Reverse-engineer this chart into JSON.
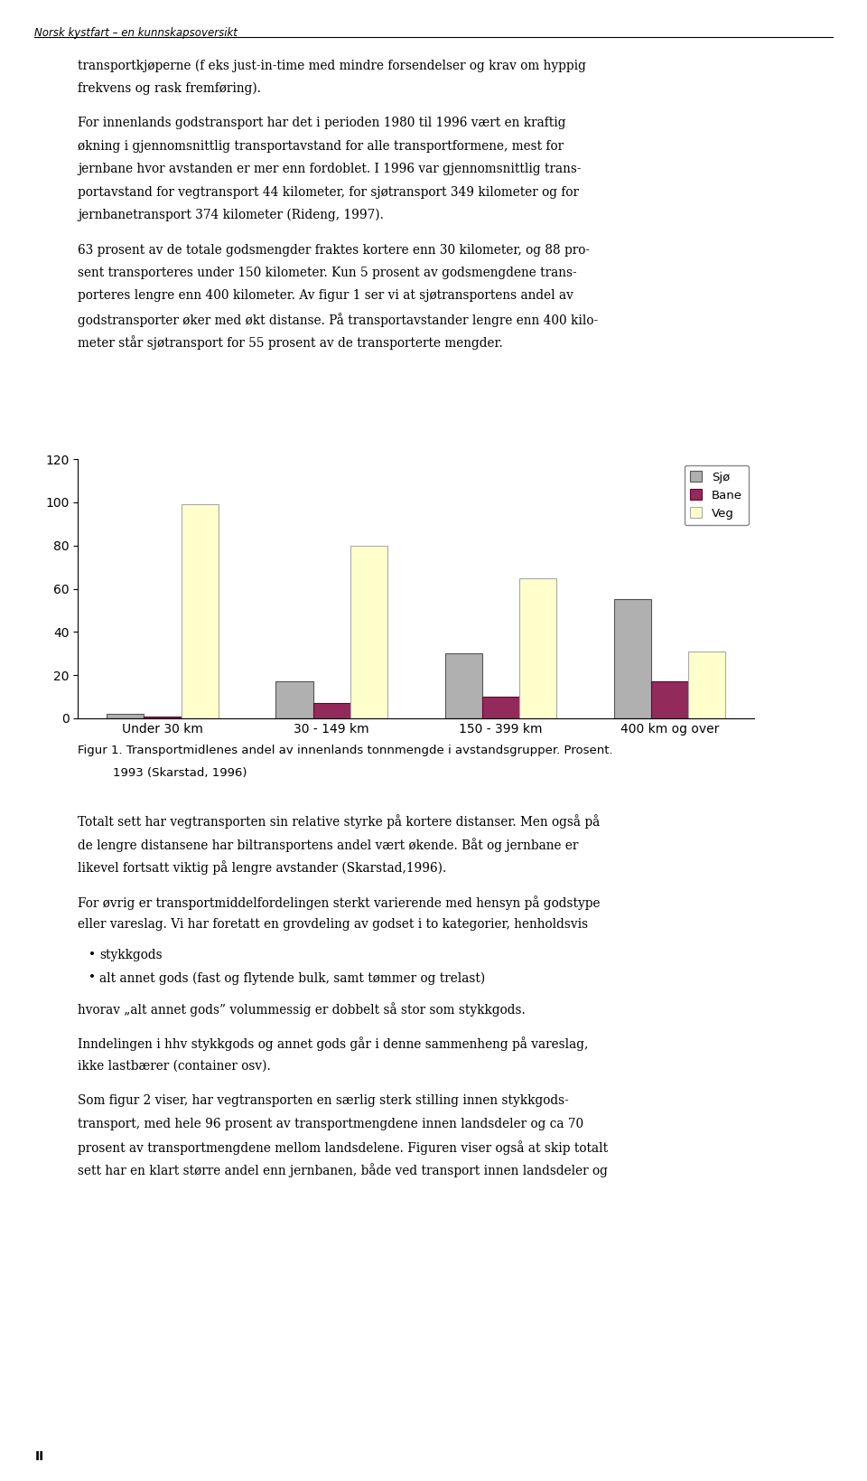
{
  "categories": [
    "Under 30 km",
    "30 - 149 km",
    "150 - 399 km",
    "400 km og over"
  ],
  "series": {
    "Sjø": [
      2,
      17,
      30,
      55
    ],
    "Bane": [
      1,
      7,
      10,
      17
    ],
    "Veg": [
      99,
      80,
      65,
      31
    ]
  },
  "colors": {
    "Sjø": "#b0b0b0",
    "Bane": "#922B5B",
    "Veg": "#ffffcc"
  },
  "edgecolors": {
    "Sjø": "#555555",
    "Bane": "#6b0030",
    "Veg": "#aaaaaa"
  },
  "ylim": [
    0,
    120
  ],
  "yticks": [
    0,
    20,
    40,
    60,
    80,
    100,
    120
  ],
  "legend_labels": [
    "Sjø",
    "Bane",
    "Veg"
  ],
  "caption_line1": "Figur 1. Transportmidlenes andel av innenlands tonnmengde i avstandsgrupper. Prosent.",
  "caption_line2": "1993 (Skarstad, 1996)",
  "header": "Norsk kystfart – en kunnskapsoversikt",
  "page_number": "II",
  "text_blocks": [
    "transportkjøperne (f eks just-in-time med mindre forsendelser og krav om hyppig\nfrekvens og rask fremføring).",
    "For innenlands godstransport har det i perioden 1980 til 1996 vært en kraftig\nøkning i gjennomsnittlig transportavstand for alle transportformene, mest for\njernbane hvor avstanden er mer enn fordoblet. I 1996 var gjennomsnittlig trans-\nportavstand for vegtransport 44 kilometer, for sjøtransport 349 kilometer og for\njernbanetransport 374 kilometer (Rideng, 1997).",
    "63 prosent av de totale godsmengder fraktes kortere enn 30 kilometer, og 88 pro-\nsent transporteres under 150 kilometer. Kun 5 prosent av godsmengdene trans-\nporteres lengre enn 400 kilometer. Av figur 1 ser vi at sjøtransportens andel av\ngodstransporter øker med økt distanse. På transportavstander lengre enn 400 kilo-\nmeter står sjøtransport for 55 prosent av de transporterte mengder."
  ],
  "text_blocks_below": [
    "Totalt sett har vegtransporten sin relative styrke på kortere distanser. Men også på\nde lengre distansene har biltransportens andel vært økende. Båt og jernbane er\nlikevel fortsatt viktig på lengre avstander (Skarstad,1996).",
    "For øvrig er transportmiddelfordelingen sterkt varierende med hensyn på godstype\neller vareslag. Vi har foretatt en grovdeling av godset i to kategorier, henholdsvis",
    "stykkgods",
    "alt annet gods (fast og flytende bulk, samt tømmer og trelast)",
    "hvorav „alt annet gods” volummessig er dobbelt så stor som stykkgods.",
    "Inndelingen i hhv stykkgods og annet gods går i denne sammenheng på vareslag,\nikke lastbærer (container osv).",
    "Som figur 2 viser, har vegtransporten en særlig sterk stilling innen stykkgods-\ntransport, med hele 96 prosent av transportmengdene innen landsdeler og ca 70\nprosent av transportmengdene mellom landsdelene. Figuren viser også at skip totalt\nsett har en klart større andel enn jernbanen, både ved transport innen landsdeler og"
  ],
  "bullet_items": [
    "stykkgods",
    "alt annet gods (fast og flytende bulk, samt tømmer og trelast)"
  ],
  "figure_width": 9.6,
  "figure_height": 16.39,
  "background_color": "#ffffff"
}
